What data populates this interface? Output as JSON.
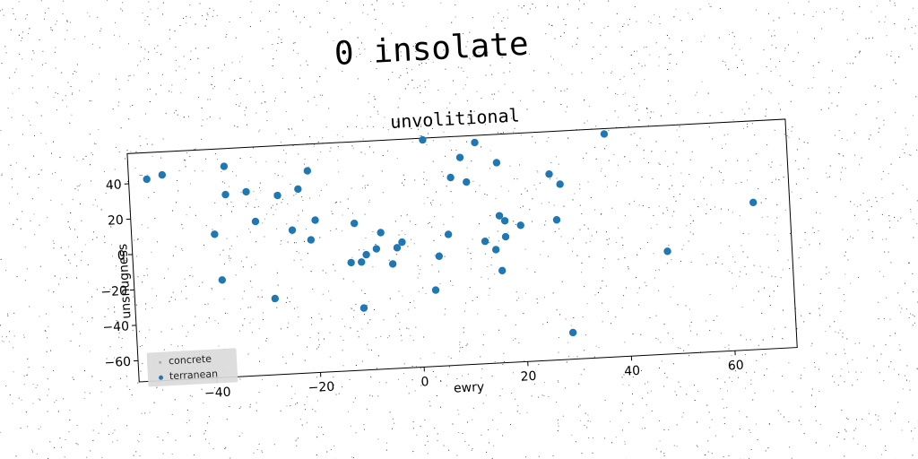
{
  "page": {
    "title": "0 insolate"
  },
  "chart_data": {
    "type": "scatter",
    "title": "unvolitional",
    "xlabel": "ewry",
    "ylabel": "unsnugness",
    "xlim": [
      -55,
      72
    ],
    "ylim": [
      -72,
      57
    ],
    "xticks": [
      -40,
      -20,
      0,
      20,
      40,
      60
    ],
    "yticks": [
      -60,
      -40,
      -20,
      0,
      20,
      40
    ],
    "grid": false,
    "legend_position": "bottom-left",
    "series": [
      {
        "name": "concrete",
        "color": "#aaaaaa",
        "x": [],
        "y": []
      },
      {
        "name": "terranean",
        "color": "#1f77b4",
        "x": [
          -51.5,
          -48.5,
          -36.5,
          -36.5,
          -32.5,
          -26.5,
          -22.5,
          -20.5,
          -20.5,
          -19.5,
          -31,
          -39,
          -38,
          -24,
          -28,
          -12,
          -13,
          -11,
          -11,
          -10,
          -8,
          -7,
          -5,
          -4,
          -3,
          2,
          3,
          4,
          6,
          7,
          9,
          10,
          12,
          13,
          15,
          16,
          16,
          16,
          17,
          17,
          20,
          26,
          27,
          28,
          29,
          37,
          48,
          65
        ],
        "y": [
          42,
          44,
          47,
          31,
          32,
          29,
          32,
          3,
          42,
          14,
          15,
          9,
          -17,
          9,
          -29,
          11,
          -11,
          -37,
          -11,
          -7,
          -4,
          5,
          -13,
          -4,
          -1,
          56,
          -29,
          -10,
          2,
          34,
          45,
          31,
          53,
          -3,
          -8,
          41,
          11,
          -20,
          -1,
          8,
          5,
          33,
          7,
          27,
          -57,
          54,
          -14,
          11
        ]
      }
    ]
  }
}
